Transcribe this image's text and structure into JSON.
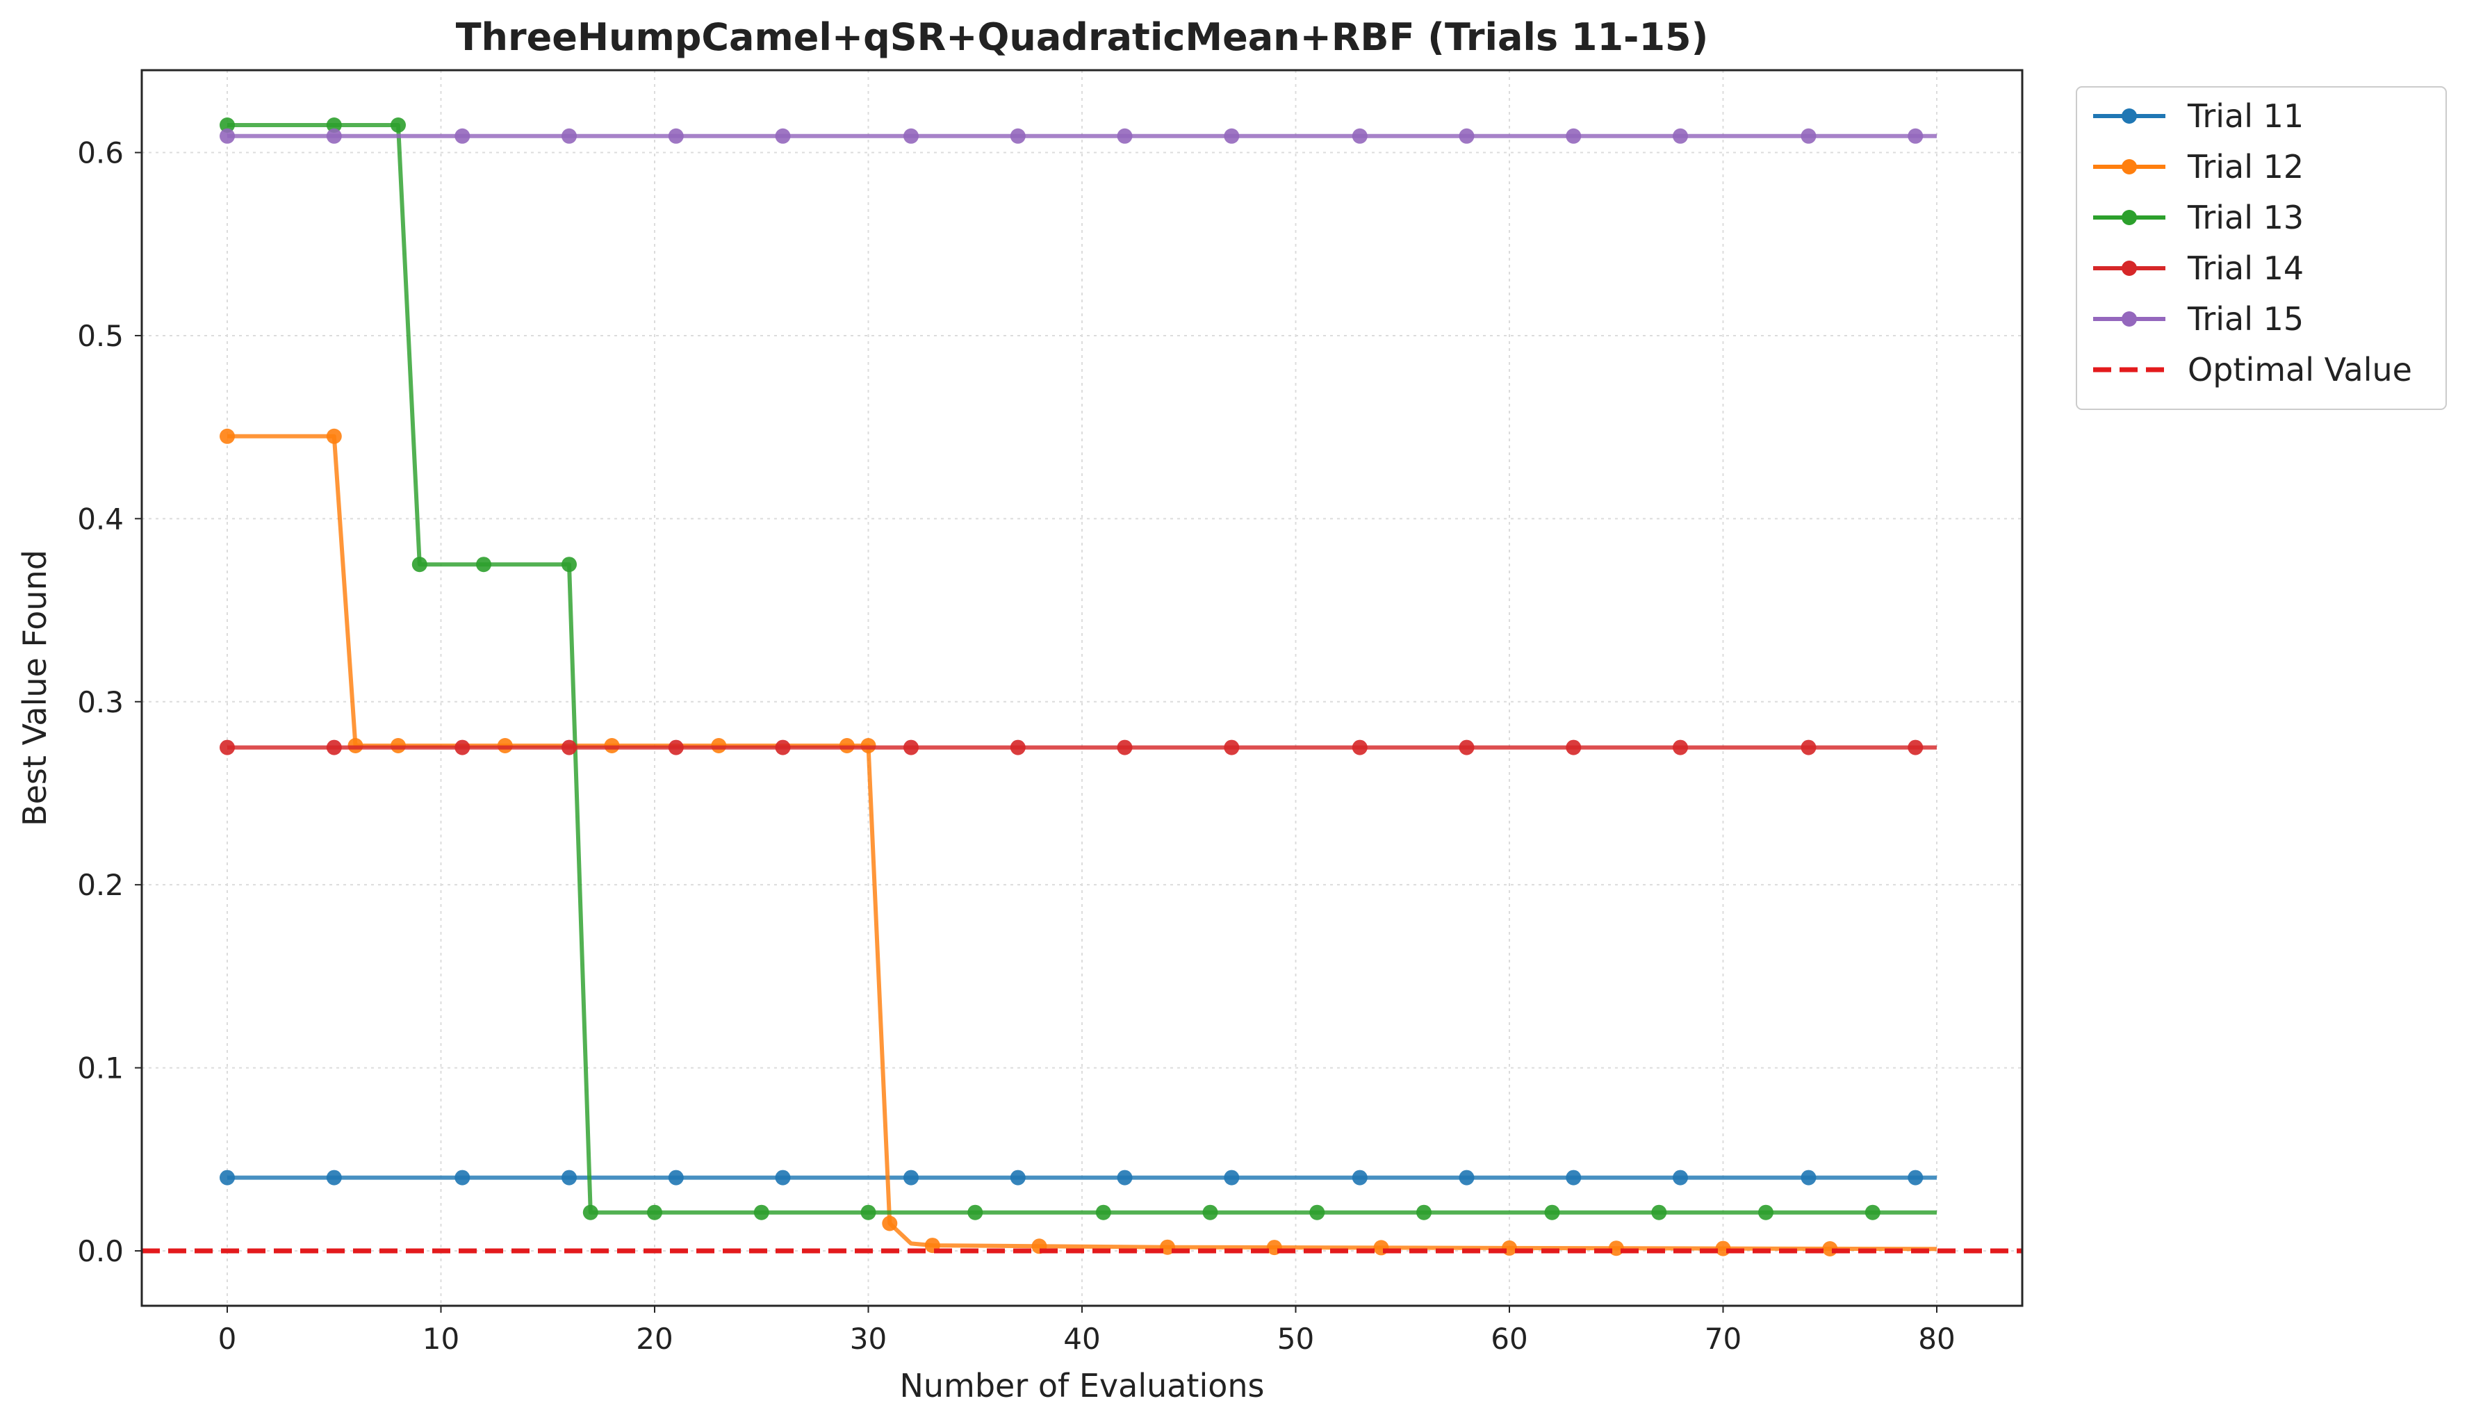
{
  "chart_data": {
    "type": "line",
    "title": "ThreeHumpCamel+qSR+QuadraticMean+RBF (Trials 11-15)",
    "xlabel": "Number of Evaluations",
    "ylabel": "Best Value Found",
    "xlim": [
      -4,
      84
    ],
    "ylim": [
      -0.03,
      0.645
    ],
    "xticks": [
      0,
      10,
      20,
      30,
      40,
      50,
      60,
      70,
      80
    ],
    "yticks": [
      0.0,
      0.1,
      0.2,
      0.3,
      0.4,
      0.5,
      0.6
    ],
    "xtick_labels": [
      "0",
      "10",
      "20",
      "30",
      "40",
      "50",
      "60",
      "70",
      "80"
    ],
    "ytick_labels": [
      "0.0",
      "0.1",
      "0.2",
      "0.3",
      "0.4",
      "0.5",
      "0.6"
    ],
    "grid": true,
    "legend_position": "outside-top-right",
    "series": [
      {
        "name": "Trial 11",
        "color": "#1f77b4",
        "steps": [
          [
            0,
            0.04
          ],
          [
            80,
            0.04
          ]
        ],
        "markers": [
          0,
          5,
          11,
          16,
          21,
          26,
          32,
          37,
          42,
          47,
          53,
          58,
          63,
          68,
          74,
          79
        ]
      },
      {
        "name": "Trial 12",
        "color": "#ff7f0e",
        "steps": [
          [
            0,
            0.445
          ],
          [
            5,
            0.445
          ],
          [
            6,
            0.276
          ],
          [
            30,
            0.276
          ],
          [
            31,
            0.015
          ],
          [
            32,
            0.004
          ],
          [
            33,
            0.003
          ],
          [
            44,
            0.002
          ],
          [
            80,
            0.001
          ]
        ],
        "markers": [
          0,
          5,
          6,
          8,
          13,
          18,
          23,
          29,
          30,
          31,
          33,
          38,
          44,
          49,
          54,
          60,
          65,
          70,
          75
        ]
      },
      {
        "name": "Trial 13",
        "color": "#2ca02c",
        "steps": [
          [
            0,
            0.615
          ],
          [
            8,
            0.615
          ],
          [
            9,
            0.375
          ],
          [
            16,
            0.375
          ],
          [
            17,
            0.021
          ],
          [
            80,
            0.021
          ]
        ],
        "markers": [
          0,
          5,
          8,
          9,
          12,
          16,
          17,
          20,
          25,
          30,
          35,
          41,
          46,
          51,
          56,
          62,
          67,
          72,
          77
        ]
      },
      {
        "name": "Trial 14",
        "color": "#d62728",
        "steps": [
          [
            0,
            0.275
          ],
          [
            80,
            0.275
          ]
        ],
        "markers": [
          0,
          5,
          11,
          16,
          21,
          26,
          32,
          37,
          42,
          47,
          53,
          58,
          63,
          68,
          74,
          79
        ]
      },
      {
        "name": "Trial 15",
        "color": "#9467bd",
        "steps": [
          [
            0,
            0.609
          ],
          [
            80,
            0.609
          ]
        ],
        "markers": [
          0,
          5,
          11,
          16,
          21,
          26,
          32,
          37,
          42,
          47,
          53,
          58,
          63,
          68,
          74,
          79
        ]
      }
    ],
    "reference_line": {
      "name": "Optimal Value",
      "value": 0.0,
      "color": "#e31a1c",
      "style": "dashed"
    }
  }
}
